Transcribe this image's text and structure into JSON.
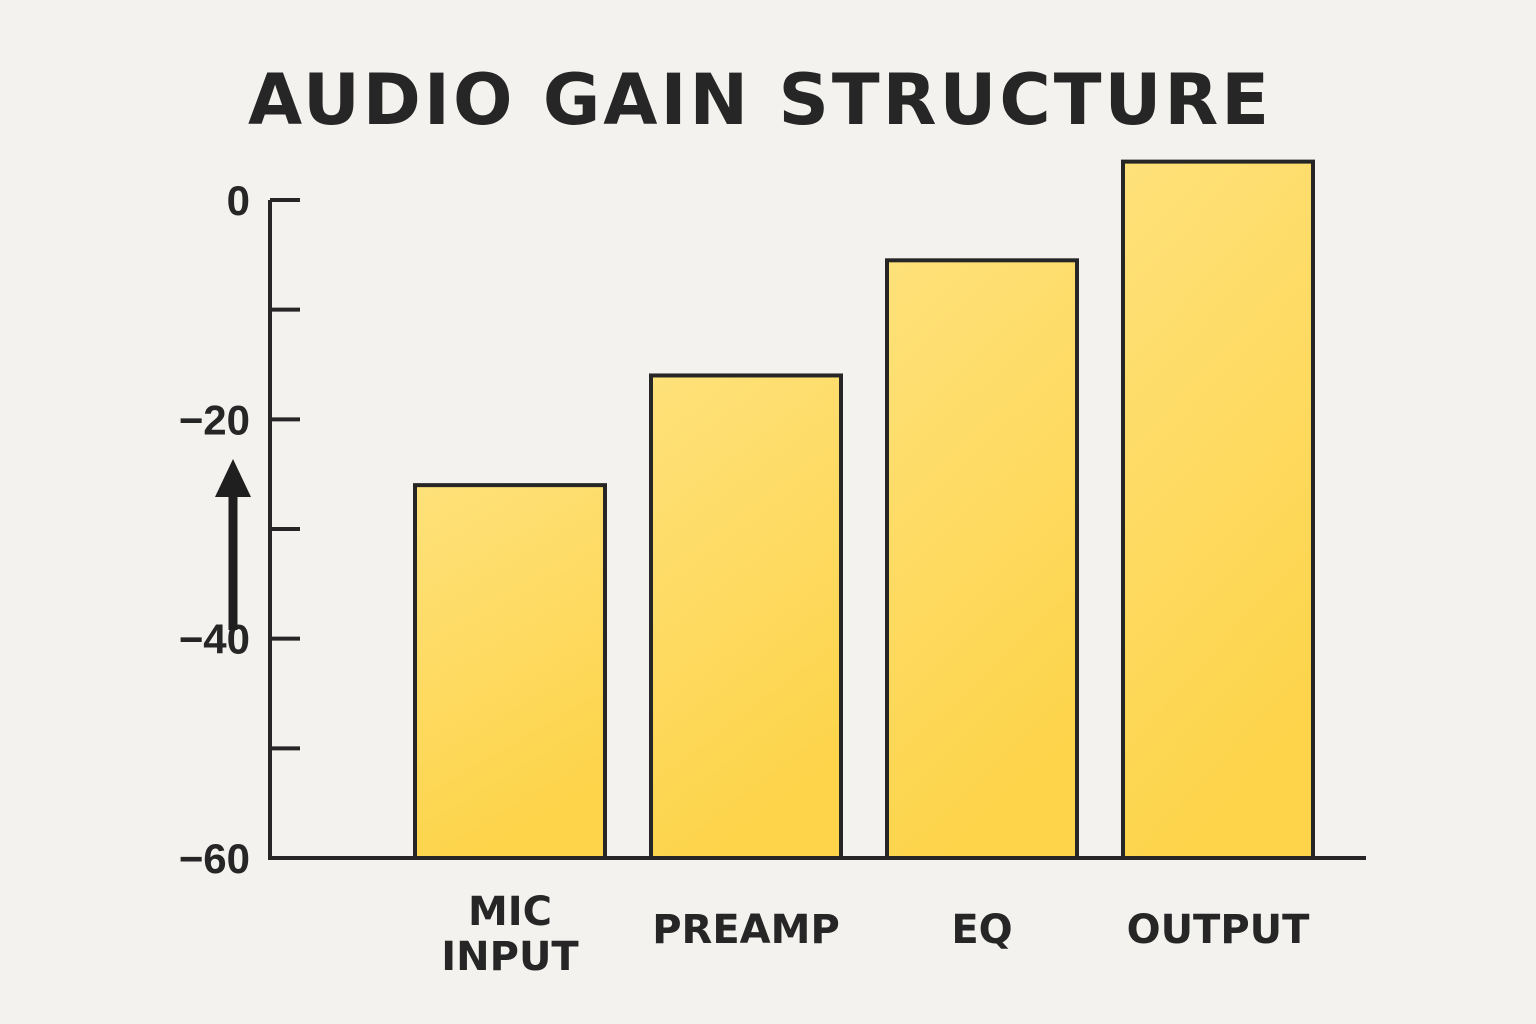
{
  "chart_data": {
    "type": "bar",
    "title": "AUDIO GAIN STRUCTURE",
    "categories": [
      [
        "MIC",
        "INPUT"
      ],
      [
        "PREAMP"
      ],
      [
        "EQ"
      ],
      [
        "OUTPUT"
      ]
    ],
    "values": [
      -26,
      -16,
      -5.5,
      3.5
    ],
    "ylim": [
      -60,
      0
    ],
    "yticks": [
      0,
      -10,
      -20,
      -30,
      -40,
      -50,
      -60
    ],
    "ytick_labels": [
      "0",
      "",
      "−20",
      "",
      "−40",
      "",
      "−60"
    ],
    "xlabel": "",
    "ylabel": "",
    "grid": false,
    "legend": "none",
    "bar_color_top": "#fee17a",
    "bar_color_bottom": "#fdd44a",
    "up_arrow": "arrow-up-icon"
  }
}
